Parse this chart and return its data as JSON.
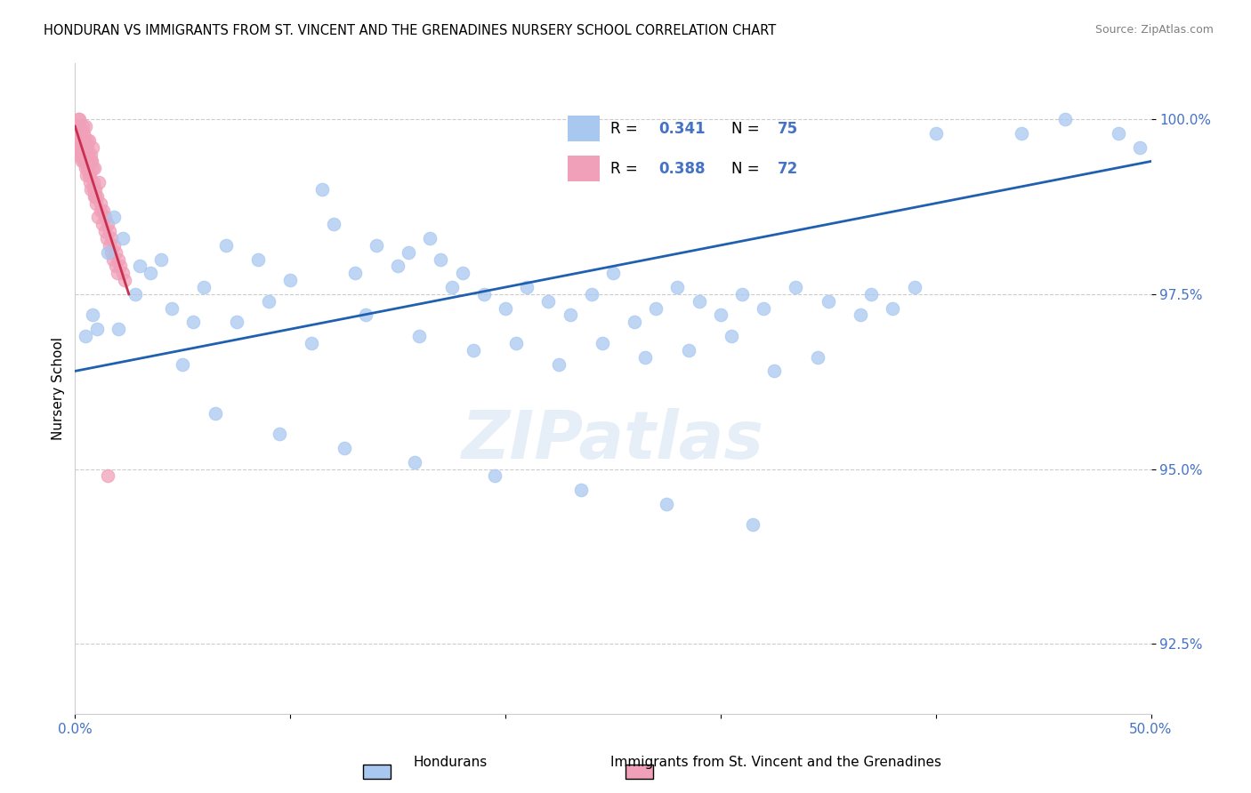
{
  "title": "HONDURAN VS IMMIGRANTS FROM ST. VINCENT AND THE GRENADINES NURSERY SCHOOL CORRELATION CHART",
  "source": "Source: ZipAtlas.com",
  "ylabel": "Nursery School",
  "xlim": [
    0.0,
    50.0
  ],
  "ylim": [
    91.5,
    100.8
  ],
  "yticks": [
    92.5,
    95.0,
    97.5,
    100.0
  ],
  "yticklabels": [
    "92.5%",
    "95.0%",
    "97.5%",
    "100.0%"
  ],
  "blue_color": "#a8c8f0",
  "pink_color": "#f0a0b8",
  "blue_line_color": "#2060b0",
  "pink_line_color": "#c83050",
  "legend_label_blue": "Hondurans",
  "legend_label_pink": "Immigrants from St. Vincent and the Grenadines",
  "blue_x": [
    1.5,
    3.0,
    1.8,
    2.2,
    0.8,
    1.0,
    0.5,
    2.8,
    3.5,
    4.0,
    4.5,
    5.5,
    6.0,
    7.0,
    8.5,
    9.0,
    10.0,
    11.5,
    12.0,
    13.0,
    14.0,
    15.0,
    15.5,
    16.5,
    17.0,
    17.5,
    18.0,
    19.0,
    20.0,
    21.0,
    22.0,
    23.0,
    24.0,
    25.0,
    26.0,
    27.0,
    28.0,
    29.0,
    30.0,
    31.0,
    32.0,
    33.5,
    35.0,
    36.5,
    37.0,
    38.0,
    39.0,
    2.0,
    5.0,
    7.5,
    11.0,
    13.5,
    16.0,
    18.5,
    20.5,
    22.5,
    24.5,
    26.5,
    28.5,
    30.5,
    32.5,
    34.5,
    6.5,
    9.5,
    12.5,
    15.8,
    19.5,
    23.5,
    27.5,
    31.5,
    40.0,
    44.0,
    46.0,
    48.5,
    49.5
  ],
  "blue_y": [
    98.1,
    97.9,
    98.6,
    98.3,
    97.2,
    97.0,
    96.9,
    97.5,
    97.8,
    98.0,
    97.3,
    97.1,
    97.6,
    98.2,
    98.0,
    97.4,
    97.7,
    99.0,
    98.5,
    97.8,
    98.2,
    97.9,
    98.1,
    98.3,
    98.0,
    97.6,
    97.8,
    97.5,
    97.3,
    97.6,
    97.4,
    97.2,
    97.5,
    97.8,
    97.1,
    97.3,
    97.6,
    97.4,
    97.2,
    97.5,
    97.3,
    97.6,
    97.4,
    97.2,
    97.5,
    97.3,
    97.6,
    97.0,
    96.5,
    97.1,
    96.8,
    97.2,
    96.9,
    96.7,
    96.8,
    96.5,
    96.8,
    96.6,
    96.7,
    96.9,
    96.4,
    96.6,
    95.8,
    95.5,
    95.3,
    95.1,
    94.9,
    94.7,
    94.5,
    94.2,
    99.8,
    99.8,
    100.0,
    99.8,
    99.6
  ],
  "pink_x": [
    0.1,
    0.15,
    0.2,
    0.25,
    0.3,
    0.35,
    0.4,
    0.45,
    0.5,
    0.55,
    0.6,
    0.65,
    0.7,
    0.75,
    0.8,
    0.85,
    0.9,
    0.95,
    1.0,
    1.1,
    1.2,
    1.3,
    1.4,
    1.5,
    1.6,
    1.7,
    1.8,
    1.9,
    2.0,
    2.1,
    2.2,
    2.3,
    0.12,
    0.22,
    0.32,
    0.42,
    0.52,
    0.62,
    0.72,
    0.82,
    0.08,
    0.18,
    0.28,
    0.38,
    0.48,
    0.58,
    0.68,
    0.78,
    0.88,
    0.98,
    1.08,
    1.18,
    1.28,
    1.38,
    1.48,
    1.58,
    1.68,
    1.78,
    1.88,
    1.98,
    0.05,
    0.15,
    0.25,
    0.35,
    0.45,
    0.55,
    0.65,
    0.75,
    0.85,
    0.95,
    0.03,
    1.5
  ],
  "pink_y": [
    99.8,
    99.9,
    100.0,
    99.7,
    99.5,
    99.8,
    99.4,
    99.6,
    99.9,
    99.3,
    99.5,
    99.7,
    99.2,
    99.4,
    99.6,
    99.1,
    99.3,
    99.0,
    98.9,
    99.1,
    98.8,
    98.7,
    98.6,
    98.5,
    98.4,
    98.3,
    98.2,
    98.1,
    98.0,
    97.9,
    97.8,
    97.7,
    99.6,
    99.8,
    99.4,
    99.7,
    99.2,
    99.5,
    99.0,
    99.3,
    99.7,
    99.9,
    99.5,
    99.8,
    99.3,
    99.6,
    99.1,
    99.4,
    98.9,
    98.8,
    98.6,
    98.7,
    98.5,
    98.4,
    98.3,
    98.2,
    98.1,
    98.0,
    97.9,
    97.8,
    99.8,
    100.0,
    99.6,
    99.9,
    99.4,
    99.7,
    99.2,
    99.5,
    99.0,
    98.9,
    99.5,
    94.9
  ],
  "blue_trend": [
    0.0,
    50.0,
    96.4,
    99.4
  ],
  "pink_trend": [
    0.0,
    2.5,
    99.9,
    97.5
  ]
}
